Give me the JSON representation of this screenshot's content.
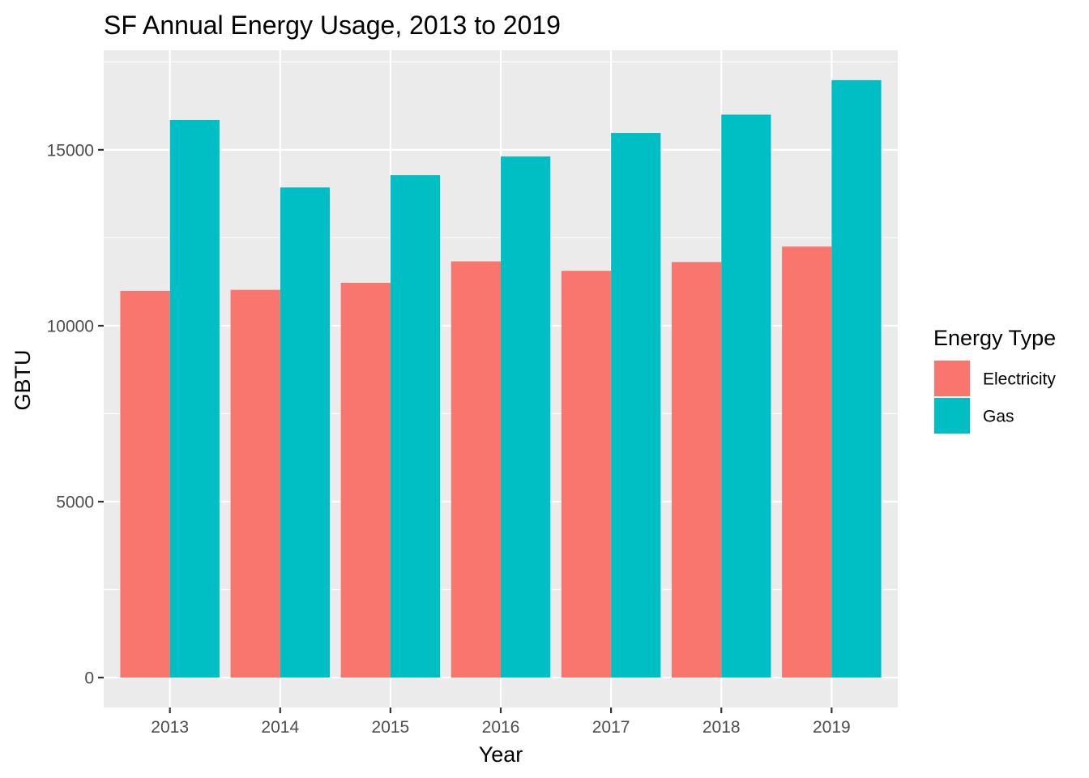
{
  "chart_data": {
    "type": "bar",
    "title": "SF Annual Energy Usage, 2013 to 2019",
    "xlabel": "Year",
    "ylabel": "GBTU",
    "categories": [
      "2013",
      "2014",
      "2015",
      "2016",
      "2017",
      "2018",
      "2019"
    ],
    "series": [
      {
        "name": "Electricity",
        "color": "#F8766D",
        "values": [
          10990,
          11020,
          11220,
          11830,
          11560,
          11810,
          12250
        ]
      },
      {
        "name": "Gas",
        "color": "#00BFC4",
        "values": [
          15850,
          13930,
          14280,
          14810,
          15480,
          16000,
          16980
        ]
      }
    ],
    "ylim": [
      -850,
      17830
    ],
    "yticks": [
      0,
      5000,
      10000,
      15000
    ],
    "ytick_labels": [
      "0",
      "5000",
      "10000",
      "15000"
    ],
    "grid": true,
    "legend": {
      "title": "Energy Type",
      "placement": "right"
    },
    "panel_background": "#EBEBEB",
    "grid_color": "#FFFFFF"
  }
}
